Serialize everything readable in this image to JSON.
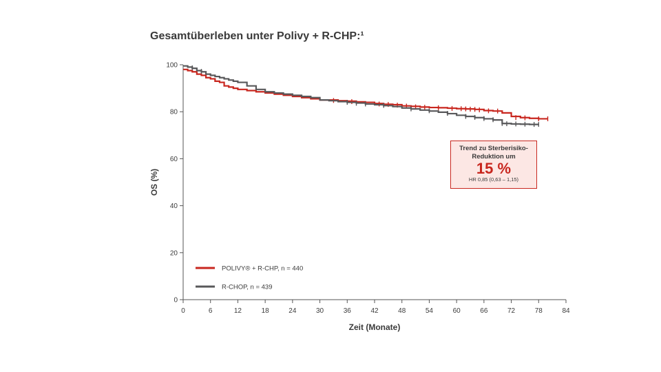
{
  "title": "Gesamtüberleben unter Polivy + R-CHP:¹",
  "colors": {
    "polivy": "#c8261e",
    "rchop": "#58585a",
    "axis": "#555555",
    "text": "#3a3a3a"
  },
  "callout": {
    "line1": "Trend zu Sterberisiko-",
    "line2": "Reduktion um",
    "value": "15 %",
    "hr": "HR 0,85 (0,63 – 1,15)"
  },
  "chart_data": {
    "type": "line",
    "title": "Gesamtüberleben unter Polivy + R-CHP:¹",
    "xlabel": "Zeit (Monate)",
    "ylabel": "OS (%)",
    "xlim": [
      0,
      84
    ],
    "ylim": [
      0,
      100
    ],
    "xticks": [
      0,
      6,
      12,
      18,
      24,
      30,
      36,
      42,
      48,
      54,
      60,
      66,
      72,
      78,
      84
    ],
    "yticks": [
      0,
      20,
      40,
      60,
      80,
      100
    ],
    "grid": false,
    "legend_position": "bottom-left",
    "series": [
      {
        "name": "POLIVY® + R-CHP, n = 440",
        "color": "#c8261e",
        "step": true,
        "points": [
          [
            0,
            98
          ],
          [
            1,
            97.5
          ],
          [
            2,
            97
          ],
          [
            3,
            96
          ],
          [
            4,
            95.5
          ],
          [
            5,
            94.5
          ],
          [
            6,
            94
          ],
          [
            7,
            93
          ],
          [
            8,
            92.5
          ],
          [
            9,
            91
          ],
          [
            10,
            90.5
          ],
          [
            11,
            90
          ],
          [
            12,
            89.5
          ],
          [
            14,
            89
          ],
          [
            16,
            88.5
          ],
          [
            18,
            88
          ],
          [
            20,
            87.5
          ],
          [
            22,
            87
          ],
          [
            24,
            86.5
          ],
          [
            26,
            86
          ],
          [
            28,
            85.5
          ],
          [
            30,
            85
          ],
          [
            32,
            85
          ],
          [
            34,
            84.7
          ],
          [
            36,
            84.5
          ],
          [
            38,
            84.2
          ],
          [
            40,
            84
          ],
          [
            42,
            83.5
          ],
          [
            44,
            83.2
          ],
          [
            46,
            83
          ],
          [
            48,
            82.5
          ],
          [
            50,
            82.3
          ],
          [
            52,
            82
          ],
          [
            54,
            81.8
          ],
          [
            56,
            81.7
          ],
          [
            58,
            81.5
          ],
          [
            60,
            81.3
          ],
          [
            62,
            81.2
          ],
          [
            64,
            81
          ],
          [
            66,
            80.5
          ],
          [
            68,
            80.3
          ],
          [
            70,
            79.5
          ],
          [
            72,
            78
          ],
          [
            74,
            77.5
          ],
          [
            76,
            77.2
          ],
          [
            78,
            77
          ],
          [
            80,
            77
          ]
        ],
        "censored": [
          [
            33,
            84.8
          ],
          [
            37,
            84.3
          ],
          [
            43,
            83.3
          ],
          [
            45,
            83.1
          ],
          [
            47,
            82.8
          ],
          [
            49,
            82.4
          ],
          [
            51,
            82.1
          ],
          [
            53,
            81.9
          ],
          [
            56,
            81.7
          ],
          [
            59,
            81.4
          ],
          [
            61,
            81.3
          ],
          [
            62,
            81.2
          ],
          [
            63,
            81.1
          ],
          [
            64,
            81
          ],
          [
            65,
            80.8
          ],
          [
            67,
            80.4
          ],
          [
            69,
            80.3
          ],
          [
            73,
            77.5
          ],
          [
            75,
            77.4
          ],
          [
            78,
            77
          ],
          [
            80,
            77
          ]
        ]
      },
      {
        "name": "R-CHOP, n = 439",
        "color": "#58585a",
        "step": true,
        "points": [
          [
            0,
            99.5
          ],
          [
            1,
            99
          ],
          [
            2,
            98.5
          ],
          [
            3,
            97.5
          ],
          [
            4,
            97
          ],
          [
            5,
            96
          ],
          [
            6,
            95.5
          ],
          [
            7,
            95
          ],
          [
            8,
            94.5
          ],
          [
            9,
            94
          ],
          [
            10,
            93.5
          ],
          [
            11,
            93
          ],
          [
            12,
            92.5
          ],
          [
            14,
            91
          ],
          [
            16,
            89.5
          ],
          [
            18,
            88.5
          ],
          [
            20,
            88
          ],
          [
            22,
            87.5
          ],
          [
            24,
            87
          ],
          [
            26,
            86.5
          ],
          [
            28,
            86
          ],
          [
            30,
            85
          ],
          [
            32,
            84.7
          ],
          [
            34,
            84.3
          ],
          [
            36,
            84
          ],
          [
            38,
            83.7
          ],
          [
            40,
            83.3
          ],
          [
            42,
            83
          ],
          [
            44,
            82.6
          ],
          [
            46,
            82.2
          ],
          [
            48,
            81.6
          ],
          [
            50,
            81.2
          ],
          [
            52,
            80.7
          ],
          [
            54,
            80.3
          ],
          [
            56,
            79.8
          ],
          [
            58,
            79.2
          ],
          [
            60,
            78.5
          ],
          [
            62,
            78
          ],
          [
            64,
            77.5
          ],
          [
            66,
            77
          ],
          [
            68,
            76.5
          ],
          [
            70,
            75
          ],
          [
            72,
            74.8
          ],
          [
            74,
            74.7
          ],
          [
            76,
            74.6
          ],
          [
            78,
            74.6
          ]
        ],
        "censored": [
          [
            2,
            98.7
          ],
          [
            4,
            97.2
          ],
          [
            36,
            84
          ],
          [
            38,
            83.6
          ],
          [
            40,
            83.3
          ],
          [
            44,
            82.7
          ],
          [
            50,
            81.2
          ],
          [
            54,
            80.4
          ],
          [
            58,
            79.3
          ],
          [
            62,
            78
          ],
          [
            64,
            77.6
          ],
          [
            66,
            77.1
          ],
          [
            68,
            76.6
          ],
          [
            70,
            75
          ],
          [
            71,
            74.9
          ],
          [
            73,
            74.8
          ],
          [
            75,
            74.7
          ],
          [
            77,
            74.6
          ],
          [
            78,
            74.6
          ]
        ]
      }
    ]
  }
}
